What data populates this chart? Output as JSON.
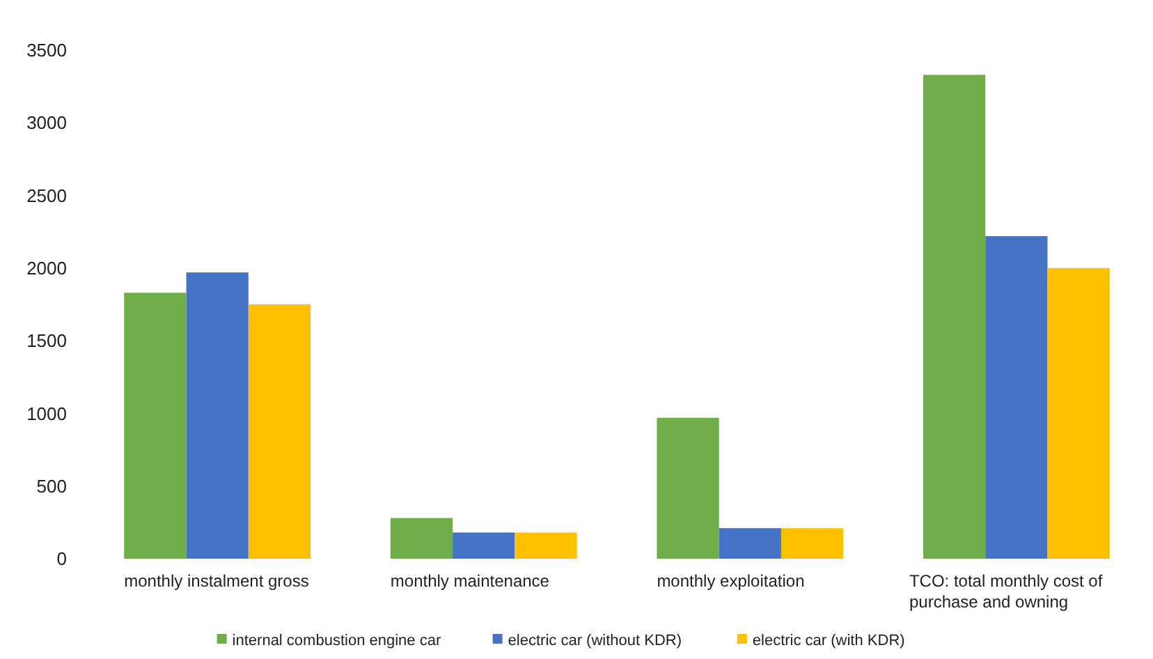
{
  "chart_data": {
    "type": "bar",
    "categories": [
      "monthly instalment gross",
      "monthly maintenance",
      "monthly exploitation",
      "TCO: total monthly cost of purchase and owning"
    ],
    "series": [
      {
        "name": "internal combustion engine car",
        "color": "#70ad47",
        "values": [
          1830,
          280,
          970,
          3330
        ]
      },
      {
        "name": "electric car (without KDR)",
        "color": "#4472c4",
        "values": [
          1970,
          180,
          210,
          2220
        ]
      },
      {
        "name": "electric car (with KDR)",
        "color": "#ffc000",
        "values": [
          1750,
          180,
          210,
          2000
        ]
      }
    ],
    "ylim": [
      0,
      3500
    ],
    "yticks": [
      0,
      500,
      1000,
      1500,
      2000,
      2500,
      3000,
      3500
    ],
    "grid": false,
    "legend": "bottom"
  }
}
